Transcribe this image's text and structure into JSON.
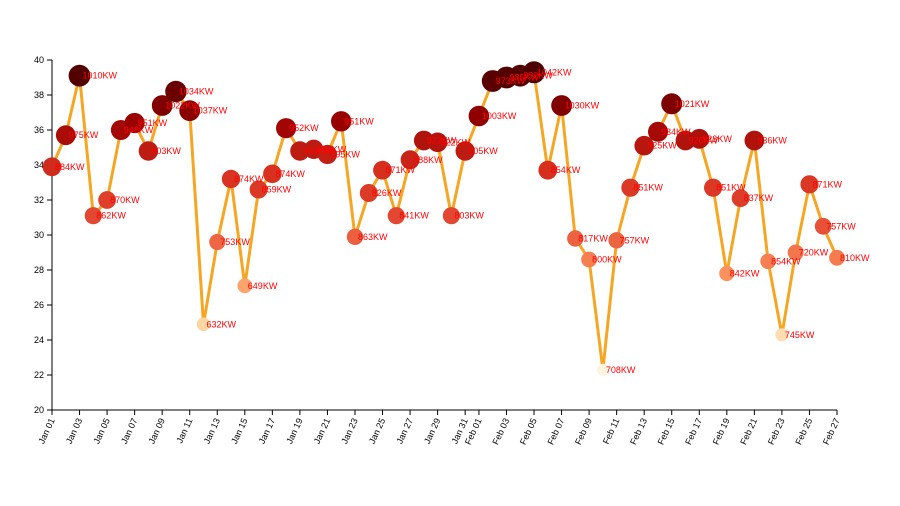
{
  "chart_data": {
    "type": "line",
    "title": "",
    "xlabel": "",
    "ylabel": "",
    "ylim": [
      20,
      40
    ],
    "yticks": [
      20,
      22,
      24,
      26,
      28,
      30,
      32,
      34,
      36,
      38,
      40
    ],
    "x": [
      "Jan 01",
      "Jan 02",
      "Jan 03",
      "Jan 04",
      "Jan 05",
      "Jan 06",
      "Jan 07",
      "Jan 08",
      "Jan 09",
      "Jan 10",
      "Jan 11",
      "Jan 12",
      "Jan 13",
      "Jan 14",
      "Jan 15",
      "Jan 16",
      "Jan 17",
      "Jan 18",
      "Jan 19",
      "Jan 20",
      "Jan 21",
      "Jan 22",
      "Jan 23",
      "Jan 24",
      "Jan 25",
      "Jan 26",
      "Jan 27",
      "Jan 28",
      "Jan 29",
      "Jan 30",
      "Jan 31",
      "Feb 01",
      "Feb 02",
      "Feb 03",
      "Feb 04",
      "Feb 05",
      "Feb 06",
      "Feb 07",
      "Feb 08",
      "Feb 09",
      "Feb 10",
      "Feb 11",
      "Feb 12",
      "Feb 13",
      "Feb 14",
      "Feb 15",
      "Feb 16",
      "Feb 17",
      "Feb 18",
      "Feb 19",
      "Feb 20",
      "Feb 21",
      "Feb 22",
      "Feb 23",
      "Feb 24",
      "Feb 25",
      "Feb 26",
      "Feb 27"
    ],
    "xtick_labels": [
      "Jan 01",
      "Jan 03",
      "Jan 05",
      "Jan 07",
      "Jan 09",
      "Jan 11",
      "Jan 13",
      "Jan 15",
      "Jan 17",
      "Jan 19",
      "Jan 21",
      "Jan 23",
      "Jan 25",
      "Jan 27",
      "Jan 29",
      "Jan 31",
      "Feb 01",
      "Feb 03",
      "Feb 05",
      "Feb 07",
      "Feb 09",
      "Feb 11",
      "Feb 13",
      "Feb 15",
      "Feb 17",
      "Feb 19",
      "Feb 21",
      "Feb 23",
      "Feb 25",
      "Feb 27"
    ],
    "series": [
      {
        "values": [
          33.9,
          35.7,
          39.1,
          31.1,
          32.0,
          36.0,
          36.4,
          34.8,
          37.4,
          38.2,
          37.1,
          24.9,
          29.6,
          33.2,
          27.1,
          32.6,
          33.5,
          36.1,
          34.8,
          34.9,
          34.6,
          36.5,
          29.9,
          32.4,
          33.7,
          31.1,
          34.3,
          35.4,
          35.3,
          31.1,
          34.8,
          36.8,
          38.8,
          39.0,
          39.1,
          39.3,
          33.7,
          37.4,
          29.8,
          28.6,
          22.3,
          29.7,
          32.7,
          35.1,
          35.9,
          37.5,
          35.4,
          35.5,
          32.7,
          27.8,
          32.1,
          35.4,
          28.5,
          24.3,
          29.0,
          32.9,
          30.5,
          28.7
        ],
        "labels": [
          "884KW",
          "975KW",
          "1010KW",
          "862KW",
          "870KW",
          "948KW",
          "951KW",
          "903KW",
          "1022KW",
          "1034KW",
          "1037KW",
          "632KW",
          "753KW",
          "874KW",
          "649KW",
          "859KW",
          "874KW",
          "952KW",
          "900KW",
          "905KW",
          "895KW",
          "951KW",
          "863KW",
          "826KW",
          "871KW",
          "841KW",
          "888KW",
          "922KW",
          "922KW",
          "803KW",
          "905KW",
          "1003KW",
          "973KW",
          "985KW",
          "992KW",
          "1042KW",
          "854KW",
          "1030KW",
          "817KW",
          "800KW",
          "708KW",
          "757KW",
          "851KW",
          "925KW",
          "934KW",
          "1021KW",
          "926KW",
          "923KW",
          "851KW",
          "842KW",
          "837KW",
          "936KW",
          "854KW",
          "745KW",
          "720KW",
          "871KW",
          "757KW",
          "810KW"
        ]
      }
    ],
    "colors": {
      "line": "#f5a623",
      "label": "#ff0000",
      "point_scale": [
        "#fdf4e0",
        "#fdd49e",
        "#fc8d59",
        "#e34a33",
        "#d7301f",
        "#990000",
        "#4d0000"
      ]
    }
  }
}
